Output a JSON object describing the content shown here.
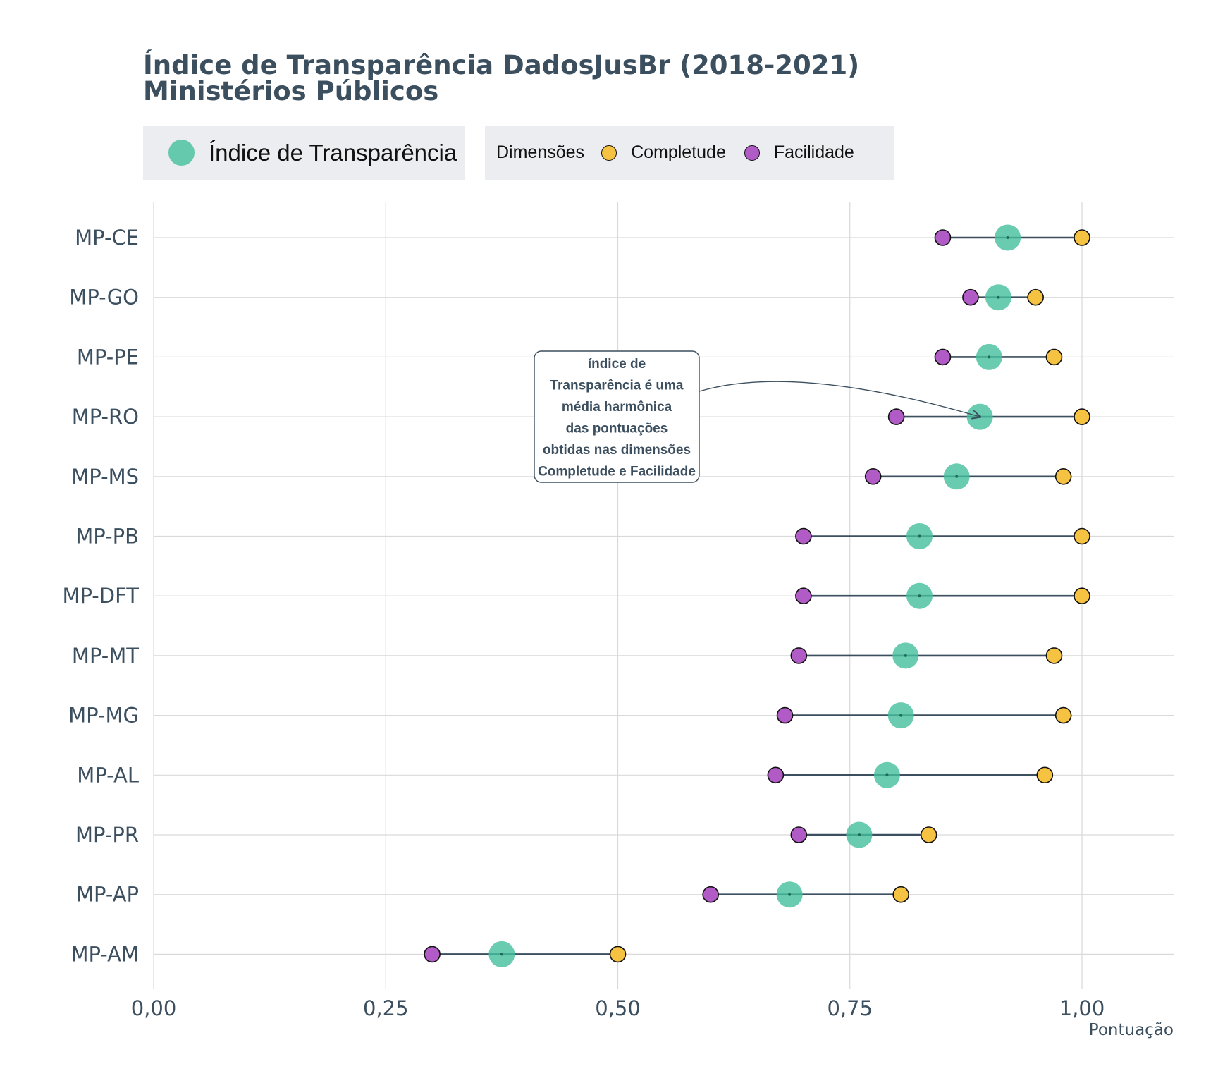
{
  "chart_data": {
    "type": "dumbbell",
    "title": "Índice de Transparência DadosJusBr (2018-2021)",
    "subtitle": "Ministérios Públicos",
    "xlabel": "Pontuação",
    "ylabel": "",
    "xlim": [
      0,
      1.1
    ],
    "x_ticks": [
      0,
      0.25,
      0.5,
      0.75,
      1.0
    ],
    "x_tick_labels": [
      "0,00",
      "0,25",
      "0,50",
      "0,75",
      "1,00"
    ],
    "grid": true,
    "legend_position": "top-left",
    "legend": {
      "index_label": "Índice de Transparência",
      "dimensions_title": "Dimensões",
      "completude_label": "Completude",
      "facilidade_label": "Facilidade"
    },
    "colors": {
      "indice": "#43bf9c",
      "completude": "#f5c242",
      "facilidade": "#b15cc6",
      "segment": "#3c4f5f",
      "text": "#3c4f5f"
    },
    "annotation": {
      "lines": [
        "índice de",
        "Transparência é uma",
        "média harmônica",
        "das pontuações",
        "obtidas nas dimensões",
        "Completude e Facilidade"
      ],
      "target_category": "MP-RO"
    },
    "categories": [
      "MP-CE",
      "MP-GO",
      "MP-PE",
      "MP-RO",
      "MP-MS",
      "MP-PB",
      "MP-DFT",
      "MP-MT",
      "MP-MG",
      "MP-AL",
      "MP-PR",
      "MP-AP",
      "MP-AM"
    ],
    "series": [
      {
        "name": "Facilidade",
        "values": [
          0.85,
          0.88,
          0.85,
          0.8,
          0.775,
          0.7,
          0.7,
          0.695,
          0.68,
          0.67,
          0.695,
          0.6,
          0.3
        ]
      },
      {
        "name": "Índice de Transparência",
        "values": [
          0.92,
          0.91,
          0.9,
          0.89,
          0.865,
          0.825,
          0.825,
          0.81,
          0.805,
          0.79,
          0.76,
          0.685,
          0.375
        ]
      },
      {
        "name": "Completude",
        "values": [
          1.0,
          0.95,
          0.97,
          1.0,
          0.98,
          1.0,
          1.0,
          0.97,
          0.98,
          0.96,
          0.835,
          0.805,
          0.5
        ]
      }
    ]
  }
}
